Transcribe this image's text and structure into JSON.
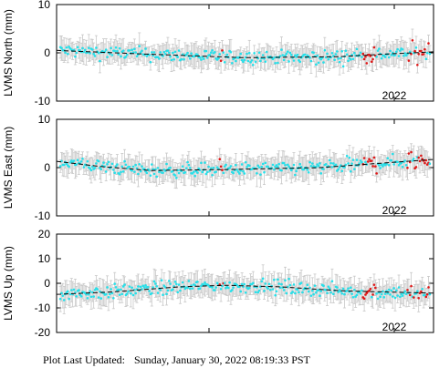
{
  "footer": {
    "label": "Plot Last Updated:",
    "value": "Sunday, January 30, 2022 08:19:33 PST"
  },
  "chart_data": [
    {
      "type": "scatter",
      "ylabel": "LVMS North (mm)",
      "ylim": [
        -10,
        10
      ],
      "yticks": [
        10,
        0,
        -10
      ],
      "x_tick_label": "2022",
      "trend": [
        [
          0,
          0.5
        ],
        [
          0.25,
          -0.3
        ],
        [
          0.5,
          -1.0
        ],
        [
          0.75,
          -0.8
        ],
        [
          0.86,
          -0.3
        ],
        [
          1,
          0.2
        ]
      ],
      "colors": {
        "main": "#26e0ea",
        "recent": "#e01919",
        "error": "#c8c8c8",
        "trend": "#000000"
      }
    },
    {
      "type": "scatter",
      "ylabel": "LVMS East (mm)",
      "ylim": [
        -10,
        10
      ],
      "yticks": [
        10,
        0,
        -10
      ],
      "x_tick_label": "2022",
      "trend": [
        [
          0,
          1.3
        ],
        [
          0.12,
          0.2
        ],
        [
          0.25,
          -0.6
        ],
        [
          0.45,
          -0.4
        ],
        [
          0.7,
          0.0
        ],
        [
          0.86,
          0.9
        ],
        [
          1,
          1.7
        ]
      ],
      "colors": {
        "main": "#26e0ea",
        "recent": "#e01919",
        "error": "#c8c8c8",
        "trend": "#000000"
      }
    },
    {
      "type": "scatter",
      "ylabel": "LVMS Up (mm)",
      "ylim": [
        -20,
        20
      ],
      "yticks": [
        20,
        10,
        0,
        -10,
        -20
      ],
      "x_tick_label": "2022",
      "trend": [
        [
          0,
          -4.5
        ],
        [
          0.15,
          -3.5
        ],
        [
          0.32,
          -1.5
        ],
        [
          0.45,
          -0.8
        ],
        [
          0.6,
          -1.5
        ],
        [
          0.75,
          -3.0
        ],
        [
          0.86,
          -3.5
        ],
        [
          1,
          -4.0
        ]
      ],
      "colors": {
        "main": "#26e0ea",
        "recent": "#e01919",
        "error": "#c8c8c8",
        "trend": "#000000"
      }
    }
  ]
}
